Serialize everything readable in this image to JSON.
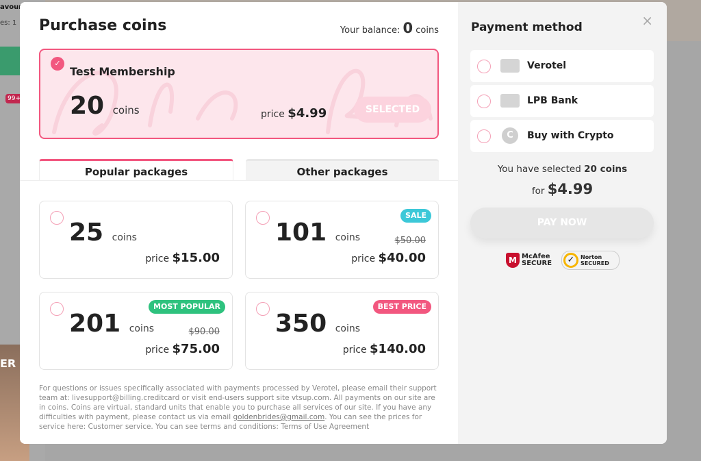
{
  "background": {
    "favourites_label": "avourit",
    "likes_label": "es: 1",
    "badge": "99+",
    "banner_text": "ER"
  },
  "header": {
    "title": "Purchase coins",
    "balance_label": "Your balance:",
    "balance_value": "0",
    "balance_unit": "coins"
  },
  "featured": {
    "watermark": "Golden Bride",
    "title": "Test Membership",
    "coins": "20",
    "unit": "coins",
    "price_label": "price",
    "price": "$4.99",
    "status": "SELECTED",
    "selected": true
  },
  "tabs": [
    {
      "label": "Popular packages",
      "active": true
    },
    {
      "label": "Other packages",
      "active": false
    }
  ],
  "packages": [
    {
      "coins": "25",
      "unit": "coins",
      "price_label": "price",
      "price": "$15.00"
    },
    {
      "coins": "101",
      "unit": "coins",
      "old_price": "$50.00",
      "price_label": "price",
      "price": "$40.00",
      "badge": "SALE",
      "badge_color": "#3cc8d8"
    },
    {
      "coins": "201",
      "unit": "coins",
      "old_price": "$90.00",
      "price_label": "price",
      "price": "$75.00",
      "badge": "MOST POPULAR",
      "badge_color": "#2ec27e"
    },
    {
      "coins": "350",
      "unit": "coins",
      "price_label": "price",
      "price": "$140.00",
      "badge": "BEST PRICE",
      "badge_color": "#f2577f"
    }
  ],
  "footer": {
    "text1": "For questions or issues specifically associated with payments processed by Verotel, please email their support team at: livesupport@billing.creditcard or visit end-users support site vtsup.com. All payments on our site are in coins. Coins are virtual, standard units that enable you to purchase all services of our site. If you have any difficulties with payment, please contact us via email ",
    "email": "goldenbrides@gmail.com",
    "text2": ". You can see the prices for service here: Customer service. You can see terms and conditions: Terms of Use Agreement"
  },
  "payment": {
    "title": "Payment method",
    "close": "×",
    "methods": [
      {
        "label": "Verotel",
        "icon": "card-icon"
      },
      {
        "label": "LPB Bank",
        "icon": "card-icon"
      },
      {
        "label": "Buy with Crypto",
        "icon": "coin-icon"
      }
    ],
    "summary_prefix": "You have selected",
    "summary_coins": "20 coins",
    "for_label": "for",
    "total": "$4.99",
    "pay_button": "PAY NOW",
    "seal1": "McAfee SECURE",
    "seal2": "Norton SECURED"
  },
  "colors": {
    "accent": "#f2577f",
    "featured_bg": "#fde6ec",
    "panel_bg": "#f3f3f3"
  }
}
